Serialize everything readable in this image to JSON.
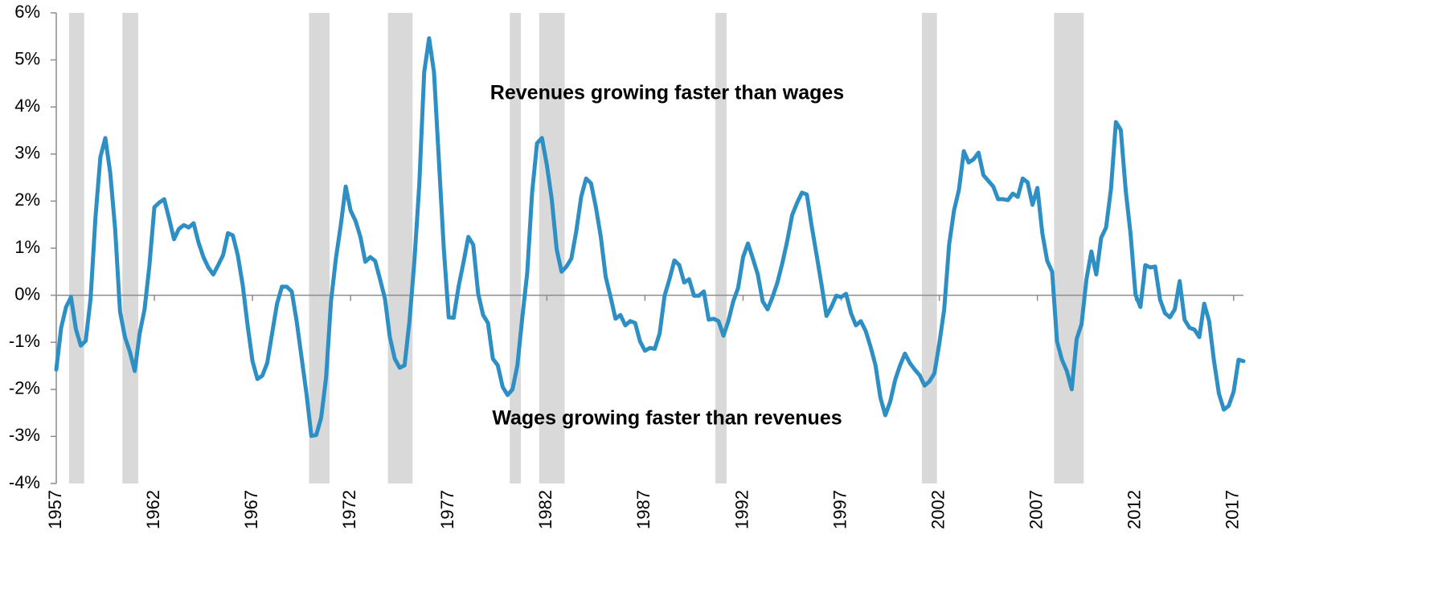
{
  "chart_data": {
    "type": "line",
    "annotations": [
      "Revenues growing faster than wages",
      "Wages growing faster than revenues"
    ],
    "x": [
      1957,
      1957.25,
      1957.5,
      1957.75,
      1958,
      1958.25,
      1958.5,
      1958.75,
      1959,
      1959.25,
      1959.5,
      1959.75,
      1960,
      1960.25,
      1960.5,
      1960.75,
      1961,
      1961.25,
      1961.5,
      1961.75,
      1962,
      1962.25,
      1962.5,
      1962.75,
      1963,
      1963.25,
      1963.5,
      1963.75,
      1964,
      1964.25,
      1964.5,
      1964.75,
      1965,
      1965.25,
      1965.5,
      1965.75,
      1966,
      1966.25,
      1966.5,
      1966.75,
      1967,
      1967.25,
      1967.5,
      1967.75,
      1968,
      1968.25,
      1968.5,
      1968.75,
      1969,
      1969.25,
      1969.5,
      1969.75,
      1970,
      1970.25,
      1970.5,
      1970.75,
      1971,
      1971.25,
      1971.5,
      1971.75,
      1972,
      1972.25,
      1972.5,
      1972.75,
      1973,
      1973.25,
      1973.5,
      1973.75,
      1974,
      1974.25,
      1974.5,
      1974.75,
      1975,
      1975.25,
      1975.5,
      1975.75,
      1976,
      1976.25,
      1976.5,
      1976.75,
      1977,
      1977.25,
      1977.5,
      1977.75,
      1978,
      1978.25,
      1978.5,
      1978.75,
      1979,
      1979.25,
      1979.5,
      1979.75,
      1980,
      1980.25,
      1980.5,
      1980.75,
      1981,
      1981.25,
      1981.5,
      1981.75,
      1982,
      1982.25,
      1982.5,
      1982.75,
      1983,
      1983.25,
      1983.5,
      1983.75,
      1984,
      1984.25,
      1984.5,
      1984.75,
      1985,
      1985.25,
      1985.5,
      1985.75,
      1986,
      1986.25,
      1986.5,
      1986.75,
      1987,
      1987.25,
      1987.5,
      1987.75,
      1988,
      1988.25,
      1988.5,
      1988.75,
      1989,
      1989.25,
      1989.5,
      1989.75,
      1990,
      1990.25,
      1990.5,
      1990.75,
      1991,
      1991.25,
      1991.5,
      1991.75,
      1992,
      1992.25,
      1992.5,
      1992.75,
      1993,
      1993.25,
      1993.5,
      1993.75,
      1994,
      1994.25,
      1994.5,
      1994.75,
      1995,
      1995.25,
      1995.5,
      1995.75,
      1996,
      1996.25,
      1996.5,
      1996.75,
      1997,
      1997.25,
      1997.5,
      1997.75,
      1998,
      1998.25,
      1998.5,
      1998.75,
      1999,
      1999.25,
      1999.5,
      1999.75,
      2000,
      2000.25,
      2000.5,
      2000.75,
      2001,
      2001.25,
      2001.5,
      2001.75,
      2002,
      2002.25,
      2002.5,
      2002.75,
      2003,
      2003.25,
      2003.5,
      2003.75,
      2004,
      2004.25,
      2004.5,
      2004.75,
      2005,
      2005.25,
      2005.5,
      2005.75,
      2006,
      2006.25,
      2006.5,
      2006.75,
      2007,
      2007.25,
      2007.5,
      2007.75,
      2008,
      2008.25,
      2008.5,
      2008.75,
      2009,
      2009.25,
      2009.5,
      2009.75,
      2010,
      2010.25,
      2010.5,
      2010.75,
      2011,
      2011.25,
      2011.5,
      2011.75,
      2012,
      2012.25,
      2012.5,
      2012.75,
      2013,
      2013.25,
      2013.5,
      2013.75,
      2014,
      2014.25,
      2014.5,
      2014.75,
      2015,
      2015.25,
      2015.5,
      2015.75,
      2016,
      2016.25,
      2016.5,
      2016.75,
      2017,
      2017.25,
      2017.5
    ],
    "series": [
      {
        "color": "#2e8fc4",
        "values": [
          -1.58,
          -0.69,
          -0.25,
          -0.04,
          -0.72,
          -1.07,
          -0.97,
          -0.07,
          1.67,
          2.94,
          3.34,
          2.6,
          1.41,
          -0.35,
          -0.89,
          -1.2,
          -1.61,
          -0.81,
          -0.3,
          0.64,
          1.87,
          1.97,
          2.04,
          1.63,
          1.19,
          1.41,
          1.49,
          1.44,
          1.53,
          1.12,
          0.81,
          0.59,
          0.44,
          0.64,
          0.85,
          1.32,
          1.27,
          0.85,
          0.22,
          -0.64,
          -1.4,
          -1.78,
          -1.71,
          -1.44,
          -0.81,
          -0.18,
          0.18,
          0.18,
          0.08,
          -0.55,
          -1.32,
          -2.09,
          -2.99,
          -2.97,
          -2.6,
          -1.75,
          -0.13,
          0.78,
          1.49,
          2.31,
          1.8,
          1.58,
          1.24,
          0.71,
          0.81,
          0.73,
          0.34,
          -0.07,
          -0.89,
          -1.35,
          -1.54,
          -1.49,
          -0.55,
          0.72,
          2.35,
          4.74,
          5.46,
          4.74,
          2.86,
          0.98,
          -0.47,
          -0.48,
          0.18,
          0.69,
          1.24,
          1.07,
          0.04,
          -0.42,
          -0.59,
          -1.35,
          -1.49,
          -1.95,
          -2.12,
          -2.0,
          -1.49,
          -0.47,
          0.47,
          2.18,
          3.23,
          3.34,
          2.77,
          2.04,
          0.98,
          0.5,
          0.61,
          0.78,
          1.36,
          2.09,
          2.48,
          2.38,
          1.87,
          1.24,
          0.39,
          -0.04,
          -0.5,
          -0.42,
          -0.64,
          -0.55,
          -0.59,
          -0.98,
          -1.18,
          -1.12,
          -1.14,
          -0.81,
          -0.01,
          0.34,
          0.74,
          0.64,
          0.27,
          0.34,
          -0.01,
          -0.01,
          0.08,
          -0.52,
          -0.5,
          -0.55,
          -0.86,
          -0.55,
          -0.13,
          0.16,
          0.81,
          1.1,
          0.78,
          0.44,
          -0.13,
          -0.3,
          -0.04,
          0.27,
          0.68,
          1.15,
          1.7,
          1.96,
          2.18,
          2.14,
          1.46,
          0.85,
          0.22,
          -0.44,
          -0.25,
          -0.01,
          -0.04,
          0.03,
          -0.38,
          -0.64,
          -0.55,
          -0.76,
          -1.1,
          -1.49,
          -2.18,
          -2.55,
          -2.26,
          -1.8,
          -1.49,
          -1.24,
          -1.44,
          -1.58,
          -1.7,
          -1.92,
          -1.83,
          -1.66,
          -1.03,
          -0.3,
          1.07,
          1.8,
          2.24,
          3.06,
          2.82,
          2.89,
          3.03,
          2.55,
          2.43,
          2.31,
          2.04,
          2.04,
          2.02,
          2.16,
          2.09,
          2.48,
          2.4,
          1.92,
          2.28,
          1.32,
          0.73,
          0.5,
          -0.98,
          -1.37,
          -1.61,
          -2.0,
          -0.93,
          -0.61,
          0.34,
          0.93,
          0.44,
          1.22,
          1.44,
          2.26,
          3.68,
          3.51,
          2.23,
          1.29,
          0.01,
          -0.25,
          0.64,
          0.59,
          0.61,
          -0.09,
          -0.38,
          -0.47,
          -0.3,
          0.3,
          -0.52,
          -0.69,
          -0.73,
          -0.89,
          -0.18,
          -0.55,
          -1.4,
          -2.09,
          -2.43,
          -2.35,
          -2.05,
          -1.37,
          -1.4
        ]
      }
    ],
    "shaded_periods": [
      [
        1957.65,
        1958.42
      ],
      [
        1960.37,
        1961.18
      ],
      [
        1969.88,
        1970.93
      ],
      [
        1973.9,
        1975.16
      ],
      [
        1980.11,
        1980.68
      ],
      [
        1981.61,
        1982.91
      ],
      [
        1990.59,
        1991.16
      ],
      [
        2001.11,
        2001.88
      ],
      [
        2007.85,
        2009.36
      ]
    ],
    "shaded_color": "#d9d9d9",
    "xlim": [
      1957,
      2017.5
    ],
    "xticks": [
      1957,
      1962,
      1967,
      1972,
      1977,
      1982,
      1987,
      1992,
      1997,
      2002,
      2007,
      2012,
      2017
    ],
    "ylim": [
      -4,
      6
    ],
    "yticks": [
      {
        "value": -4,
        "label": "-4%"
      },
      {
        "value": -3,
        "label": "-3%"
      },
      {
        "value": -2,
        "label": "-2%"
      },
      {
        "value": -1,
        "label": "-1%"
      },
      {
        "value": 0,
        "label": "0%"
      },
      {
        "value": 1,
        "label": "1%"
      },
      {
        "value": 2,
        "label": "2%"
      },
      {
        "value": 3,
        "label": "3%"
      },
      {
        "value": 4,
        "label": "4%"
      },
      {
        "value": 5,
        "label": "5%"
      },
      {
        "value": 6,
        "label": "6%"
      }
    ]
  }
}
